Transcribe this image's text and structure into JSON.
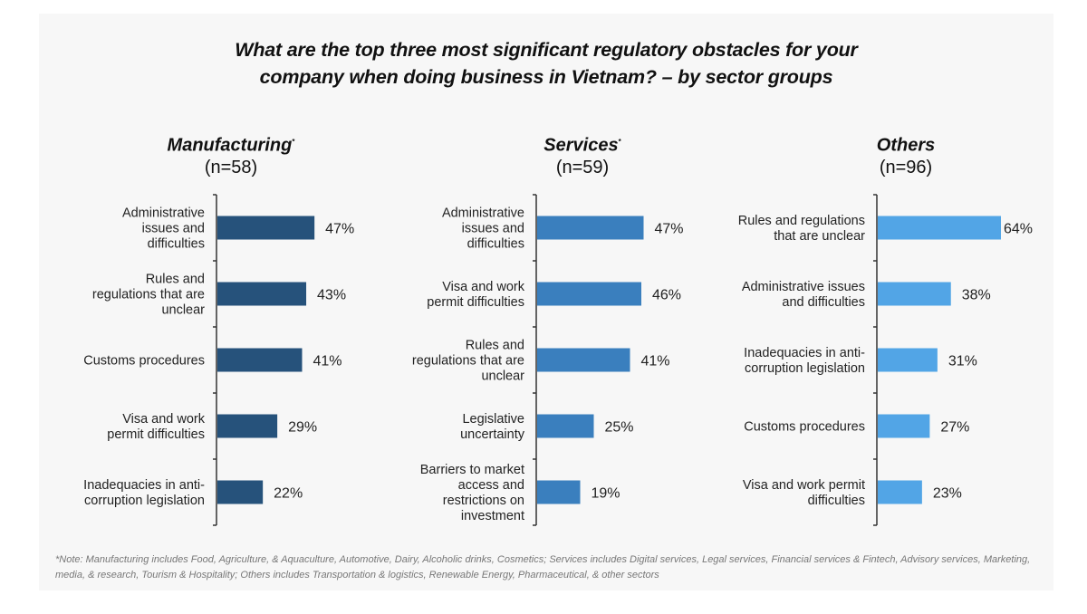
{
  "chart_data": {
    "type": "bar",
    "orientation": "horizontal",
    "title": "What are the top three most significant regulatory obstacles for your company when doing business in Vietnam? – by sector groups",
    "title_lines": [
      "What are the top three most significant regulatory obstacles for your",
      "company when doing business in Vietnam? – by sector groups"
    ],
    "value_suffix": "%",
    "grid": false,
    "legend": "none",
    "panels": [
      {
        "name": "Manufacturing",
        "asterisk": "*",
        "n_label": "(n=58)",
        "color": "#26527b",
        "categories": [
          [
            "Administrative",
            "issues and",
            "difficulties"
          ],
          [
            "Rules and",
            "regulations that are",
            "unclear"
          ],
          [
            "Customs procedures"
          ],
          [
            "Visa and work",
            "permit difficulties"
          ],
          [
            "Inadequacies in anti-",
            "corruption legislation"
          ]
        ],
        "values": [
          47,
          43,
          41,
          29,
          22
        ],
        "value_labels": [
          "47%",
          "43%",
          "41%",
          "29%",
          "22%"
        ]
      },
      {
        "name": "Services",
        "asterisk": "*",
        "n_label": "(n=59)",
        "color": "#3a7fbe",
        "categories": [
          [
            "Administrative",
            "issues and",
            "difficulties"
          ],
          [
            "Visa and work",
            "permit difficulties"
          ],
          [
            "Rules and",
            "regulations that are",
            "unclear"
          ],
          [
            "Legislative",
            "uncertainty"
          ],
          [
            "Barriers to market",
            "access and",
            "restrictions on",
            "investment"
          ]
        ],
        "values": [
          47,
          46,
          41,
          25,
          19
        ],
        "value_labels": [
          "47%",
          "46%",
          "41%",
          "25%",
          "19%"
        ]
      },
      {
        "name": "Others",
        "asterisk": "",
        "n_label": "(n=96)",
        "color": "#52a5e6",
        "categories": [
          [
            "Rules and regulations",
            "that are unclear"
          ],
          [
            "Administrative issues",
            "and difficulties"
          ],
          [
            "Inadequacies in anti-",
            "corruption legislation"
          ],
          [
            "Customs procedures"
          ],
          [
            "Visa and work permit",
            "difficulties"
          ]
        ],
        "values": [
          64,
          38,
          31,
          27,
          23
        ],
        "value_labels": [
          "64%",
          "38%",
          "31%",
          "27%",
          "23%"
        ]
      }
    ],
    "note": "*Note: Manufacturing includes Food, Agriculture, & Aquaculture, Automotive, Dairy, Alcoholic drinks, Cosmetics; Services includes Digital services, Legal services, Financial services & Fintech, Advisory services, Marketing, media, & research, Tourism & Hospitality; Others includes Transportation & logistics, Renewable Energy, Pharmaceutical, & other sectors"
  }
}
